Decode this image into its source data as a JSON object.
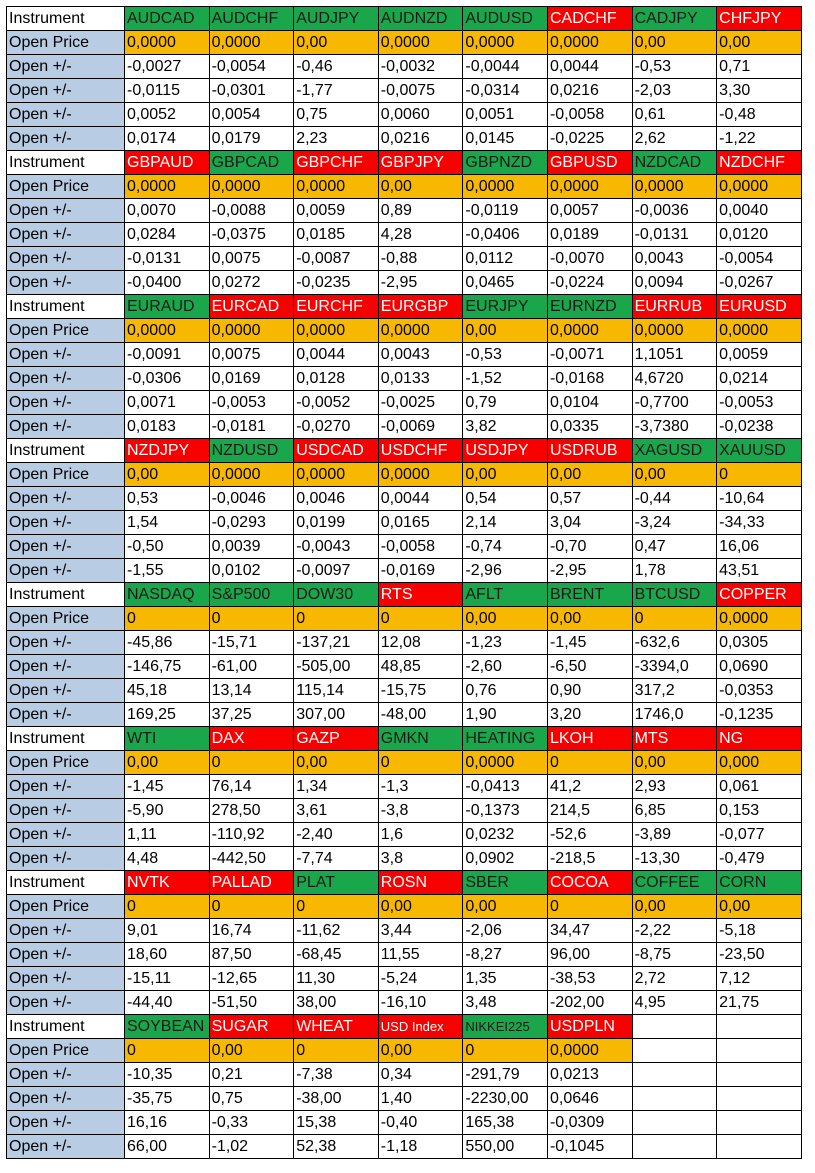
{
  "colors": {
    "up": "#1aa64a",
    "down": "#f80000",
    "open_price": "#f8b800",
    "label": "#b8cce4"
  },
  "row_labels": {
    "instrument": "Instrument",
    "open_price": "Open Price",
    "open_delta": "Open +/-"
  },
  "blocks": [
    {
      "symbols": [
        {
          "name": "AUDCAD",
          "dir": "up"
        },
        {
          "name": "AUDCHF",
          "dir": "up"
        },
        {
          "name": "AUDJPY",
          "dir": "up"
        },
        {
          "name": "AUDNZD",
          "dir": "up"
        },
        {
          "name": "AUDUSD",
          "dir": "up"
        },
        {
          "name": "CADCHF",
          "dir": "down"
        },
        {
          "name": "CADJPY",
          "dir": "up"
        },
        {
          "name": "CHFJPY",
          "dir": "down"
        }
      ],
      "open_price": [
        "0,0000",
        "0,0000",
        "0,00",
        "0,0000",
        "0,0000",
        "0,0000",
        "0,00",
        "0,00"
      ],
      "deltas": [
        [
          "-0,0027",
          "-0,0054",
          "-0,46",
          "-0,0032",
          "-0,0044",
          "0,0044",
          "-0,53",
          "0,71"
        ],
        [
          "-0,0115",
          "-0,0301",
          "-1,77",
          "-0,0075",
          "-0,0314",
          "0,0216",
          "-2,03",
          "3,30"
        ],
        [
          "0,0052",
          "0,0054",
          "0,75",
          "0,0060",
          "0,0051",
          "-0,0058",
          "0,61",
          "-0,48"
        ],
        [
          "0,0174",
          "0,0179",
          "2,23",
          "0,0216",
          "0,0145",
          "-0,0225",
          "2,62",
          "-1,22"
        ]
      ]
    },
    {
      "symbols": [
        {
          "name": "GBPAUD",
          "dir": "down"
        },
        {
          "name": "GBPCAD",
          "dir": "up"
        },
        {
          "name": "GBPCHF",
          "dir": "down"
        },
        {
          "name": "GBPJPY",
          "dir": "down"
        },
        {
          "name": "GBPNZD",
          "dir": "up"
        },
        {
          "name": "GBPUSD",
          "dir": "down"
        },
        {
          "name": "NZDCAD",
          "dir": "up"
        },
        {
          "name": "NZDCHF",
          "dir": "down"
        }
      ],
      "open_price": [
        "0,0000",
        "0,0000",
        "0,0000",
        "0,00",
        "0,0000",
        "0,0000",
        "0,0000",
        "0,0000"
      ],
      "deltas": [
        [
          "0,0070",
          "-0,0088",
          "0,0059",
          "0,89",
          "-0,0119",
          "0,0057",
          "-0,0036",
          "0,0040"
        ],
        [
          "0,0284",
          "-0,0375",
          "0,0185",
          "4,28",
          "-0,0406",
          "0,0189",
          "-0,0131",
          "0,0120"
        ],
        [
          "-0,0131",
          "0,0075",
          "-0,0087",
          "-0,88",
          "0,0112",
          "-0,0070",
          "0,0043",
          "-0,0054"
        ],
        [
          "-0,0400",
          "0,0272",
          "-0,0235",
          "-2,95",
          "0,0465",
          "-0,0224",
          "0,0094",
          "-0,0267"
        ]
      ]
    },
    {
      "symbols": [
        {
          "name": "EURAUD",
          "dir": "up"
        },
        {
          "name": "EURCAD",
          "dir": "down"
        },
        {
          "name": "EURCHF",
          "dir": "down"
        },
        {
          "name": "EURGBP",
          "dir": "down"
        },
        {
          "name": "EURJPY",
          "dir": "up"
        },
        {
          "name": "EURNZD",
          "dir": "up"
        },
        {
          "name": "EURRUB",
          "dir": "down"
        },
        {
          "name": "EURUSD",
          "dir": "down"
        }
      ],
      "open_price": [
        "0,0000",
        "0,0000",
        "0,0000",
        "0,0000",
        "0,00",
        "0,0000",
        "0,0000",
        "0,0000"
      ],
      "deltas": [
        [
          "-0,0091",
          "0,0075",
          "0,0044",
          "0,0043",
          "-0,53",
          "-0,0071",
          "1,1051",
          "0,0059"
        ],
        [
          "-0,0306",
          "0,0169",
          "0,0128",
          "0,0133",
          "-1,52",
          "-0,0168",
          "4,6720",
          "0,0214"
        ],
        [
          "0,0071",
          "-0,0053",
          "-0,0052",
          "-0,0025",
          "0,79",
          "0,0104",
          "-0,7700",
          "-0,0053"
        ],
        [
          "0,0183",
          "-0,0181",
          "-0,0270",
          "-0,0069",
          "3,82",
          "0,0335",
          "-3,7380",
          "-0,0238"
        ]
      ]
    },
    {
      "symbols": [
        {
          "name": "NZDJPY",
          "dir": "down"
        },
        {
          "name": "NZDUSD",
          "dir": "up"
        },
        {
          "name": "USDCAD",
          "dir": "down"
        },
        {
          "name": "USDCHF",
          "dir": "down"
        },
        {
          "name": "USDJPY",
          "dir": "down"
        },
        {
          "name": "USDRUB",
          "dir": "down"
        },
        {
          "name": "XAGUSD",
          "dir": "up"
        },
        {
          "name": "XAUUSD",
          "dir": "up"
        }
      ],
      "open_price": [
        "0,00",
        "0,0000",
        "0,0000",
        "0,0000",
        "0,00",
        "0,00",
        "0,00",
        "0"
      ],
      "deltas": [
        [
          "0,53",
          "-0,0046",
          "0,0046",
          "0,0044",
          "0,54",
          "0,57",
          "-0,44",
          "-10,64"
        ],
        [
          "1,54",
          "-0,0293",
          "0,0199",
          "0,0165",
          "2,14",
          "3,04",
          "-3,24",
          "-34,33"
        ],
        [
          "-0,50",
          "0,0039",
          "-0,0043",
          "-0,0058",
          "-0,74",
          "-0,70",
          "0,47",
          "16,06"
        ],
        [
          "-1,55",
          "0,0102",
          "-0,0097",
          "-0,0169",
          "-2,96",
          "-2,95",
          "1,78",
          "43,51"
        ]
      ]
    },
    {
      "symbols": [
        {
          "name": "NASDAQ",
          "dir": "up"
        },
        {
          "name": "S&P500",
          "dir": "up"
        },
        {
          "name": "DOW30",
          "dir": "up"
        },
        {
          "name": "RTS",
          "dir": "down"
        },
        {
          "name": "AFLT",
          "dir": "up"
        },
        {
          "name": "BRENT",
          "dir": "up"
        },
        {
          "name": "BTCUSD",
          "dir": "up"
        },
        {
          "name": "COPPER",
          "dir": "down"
        }
      ],
      "open_price": [
        "0",
        "0",
        "0",
        "0",
        "0,00",
        "0,00",
        "0",
        "0,0000"
      ],
      "deltas": [
        [
          "-45,86",
          "-15,71",
          "-137,21",
          "12,08",
          "-1,23",
          "-1,45",
          "-632,6",
          "0,0305"
        ],
        [
          "-146,75",
          "-61,00",
          "-505,00",
          "48,85",
          "-2,60",
          "-6,50",
          "-3394,0",
          "0,0690"
        ],
        [
          "45,18",
          "13,14",
          "115,14",
          "-15,75",
          "0,76",
          "0,90",
          "317,2",
          "-0,0353"
        ],
        [
          "169,25",
          "37,25",
          "307,00",
          "-48,00",
          "1,90",
          "3,20",
          "1746,0",
          "-0,1235"
        ]
      ]
    },
    {
      "symbols": [
        {
          "name": "WTI",
          "dir": "up"
        },
        {
          "name": "DAX",
          "dir": "down"
        },
        {
          "name": "GAZP",
          "dir": "down"
        },
        {
          "name": "GMKN",
          "dir": "up"
        },
        {
          "name": "HEATING",
          "dir": "up"
        },
        {
          "name": "LKOH",
          "dir": "down"
        },
        {
          "name": "MTS",
          "dir": "down"
        },
        {
          "name": "NG",
          "dir": "down"
        }
      ],
      "open_price": [
        "0,00",
        "0",
        "0,00",
        "0",
        "0,0000",
        "0",
        "0,00",
        "0,000"
      ],
      "deltas": [
        [
          "-1,45",
          "76,14",
          "1,34",
          "-1,3",
          "-0,0413",
          "41,2",
          "2,93",
          "0,061"
        ],
        [
          "-5,90",
          "278,50",
          "3,61",
          "-3,8",
          "-0,1373",
          "214,5",
          "6,85",
          "0,153"
        ],
        [
          "1,11",
          "-110,92",
          "-2,40",
          "1,6",
          "0,0232",
          "-52,6",
          "-3,89",
          "-0,077"
        ],
        [
          "4,48",
          "-442,50",
          "-7,74",
          "3,8",
          "0,0902",
          "-218,5",
          "-13,30",
          "-0,479"
        ]
      ]
    },
    {
      "symbols": [
        {
          "name": "NVTK",
          "dir": "down"
        },
        {
          "name": "PALLAD",
          "dir": "down"
        },
        {
          "name": "PLAT",
          "dir": "up"
        },
        {
          "name": "ROSN",
          "dir": "down"
        },
        {
          "name": "SBER",
          "dir": "up"
        },
        {
          "name": "COCOA",
          "dir": "down"
        },
        {
          "name": "COFFEE",
          "dir": "up"
        },
        {
          "name": "CORN",
          "dir": "up"
        }
      ],
      "open_price": [
        "0",
        "0",
        "0",
        "0,00",
        "0,00",
        "0",
        "0,00",
        "0,00"
      ],
      "deltas": [
        [
          "9,01",
          "16,74",
          "-11,62",
          "3,44",
          "-2,06",
          "34,47",
          "-2,22",
          "-5,18"
        ],
        [
          "18,60",
          "87,50",
          "-68,45",
          "11,55",
          "-8,27",
          "96,00",
          "-8,75",
          "-23,50"
        ],
        [
          "-15,11",
          "-12,65",
          "11,30",
          "-5,24",
          "1,35",
          "-38,53",
          "2,72",
          "7,12"
        ],
        [
          "-44,40",
          "-51,50",
          "38,00",
          "-16,10",
          "3,48",
          "-202,00",
          "4,95",
          "21,75"
        ]
      ]
    },
    {
      "symbols": [
        {
          "name": "SOYBEAN",
          "dir": "up"
        },
        {
          "name": "SUGAR",
          "dir": "down"
        },
        {
          "name": "WHEAT",
          "dir": "down"
        },
        {
          "name": "USD Index",
          "dir": "down",
          "small": true
        },
        {
          "name": "NIKKEI225",
          "dir": "up",
          "small": true
        },
        {
          "name": "USDPLN",
          "dir": "down"
        }
      ],
      "open_price": [
        "0",
        "0,00",
        "0",
        "0,00",
        "0",
        "0,0000"
      ],
      "deltas": [
        [
          "-10,35",
          "0,21",
          "-7,38",
          "0,34",
          "-291,79",
          "0,0213"
        ],
        [
          "-35,75",
          "0,75",
          "-38,00",
          "1,40",
          "-2230,00",
          "0,0646"
        ],
        [
          "16,16",
          "-0,33",
          "15,38",
          "-0,40",
          "165,38",
          "-0,0309"
        ],
        [
          "66,00",
          "-1,02",
          "52,38",
          "-1,18",
          "550,00",
          "-0,1045"
        ]
      ]
    }
  ]
}
